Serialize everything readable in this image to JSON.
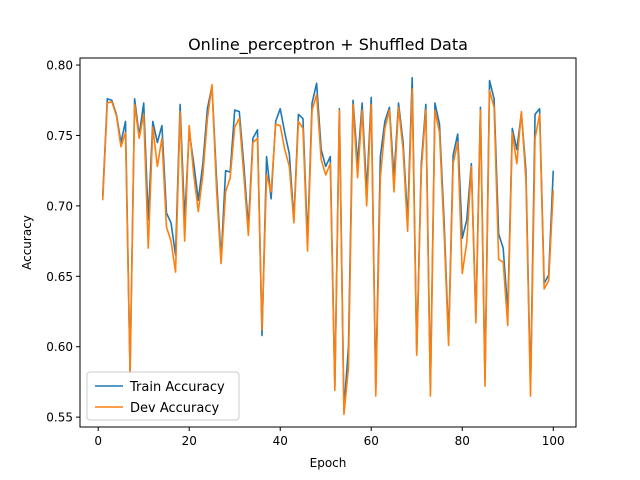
{
  "chart_data": {
    "type": "line",
    "title": "Online_perceptron + Shuffled Data",
    "xlabel": "Epoch",
    "ylabel": "Accuracy",
    "xlim": [
      -4,
      105
    ],
    "ylim": [
      0.543,
      0.805
    ],
    "xticks": [
      0,
      20,
      40,
      60,
      80,
      100
    ],
    "yticks": [
      0.55,
      0.6,
      0.65,
      0.7,
      0.75,
      0.8
    ],
    "ytick_labels": [
      "0.55",
      "0.60",
      "0.65",
      "0.70",
      "0.75",
      "0.80"
    ],
    "grid": false,
    "legend_position": "lower-left",
    "x": [
      1,
      2,
      3,
      4,
      5,
      6,
      7,
      8,
      9,
      10,
      11,
      12,
      13,
      14,
      15,
      16,
      17,
      18,
      19,
      20,
      21,
      22,
      23,
      24,
      25,
      26,
      27,
      28,
      29,
      30,
      31,
      32,
      33,
      34,
      35,
      36,
      37,
      38,
      39,
      40,
      41,
      42,
      43,
      44,
      45,
      46,
      47,
      48,
      49,
      50,
      51,
      52,
      53,
      54,
      55,
      56,
      57,
      58,
      59,
      60,
      61,
      62,
      63,
      64,
      65,
      66,
      67,
      68,
      69,
      70,
      71,
      72,
      73,
      74,
      75,
      76,
      77,
      78,
      79,
      80,
      81,
      82,
      83,
      84,
      85,
      86,
      87,
      88,
      89,
      90,
      91,
      92,
      93,
      94,
      95,
      96,
      97,
      98,
      99,
      100
    ],
    "series": [
      {
        "name": "Train Accuracy",
        "color": "#1f77b4",
        "values": [
          0.707,
          0.776,
          0.775,
          0.765,
          0.745,
          0.76,
          0.582,
          0.776,
          0.75,
          0.773,
          0.69,
          0.76,
          0.745,
          0.757,
          0.695,
          0.688,
          0.665,
          0.772,
          0.69,
          0.753,
          0.73,
          0.704,
          0.73,
          0.769,
          0.785,
          0.72,
          0.662,
          0.725,
          0.724,
          0.768,
          0.767,
          0.729,
          0.685,
          0.748,
          0.754,
          0.608,
          0.735,
          0.705,
          0.76,
          0.769,
          0.752,
          0.737,
          0.69,
          0.765,
          0.762,
          0.675,
          0.773,
          0.787,
          0.74,
          0.728,
          0.735,
          0.572,
          0.769,
          0.555,
          0.6,
          0.775,
          0.73,
          0.773,
          0.71,
          0.777,
          0.57,
          0.735,
          0.76,
          0.77,
          0.72,
          0.773,
          0.745,
          0.69,
          0.791,
          0.596,
          0.73,
          0.772,
          0.57,
          0.773,
          0.758,
          0.69,
          0.605,
          0.736,
          0.751,
          0.677,
          0.69,
          0.73,
          0.62,
          0.77,
          0.577,
          0.789,
          0.776,
          0.68,
          0.67,
          0.625,
          0.755,
          0.74,
          0.766,
          0.725,
          0.57,
          0.765,
          0.769,
          0.645,
          0.651,
          0.725
        ]
      },
      {
        "name": "Dev Accuracy",
        "color": "#ff7f0e",
        "values": [
          0.704,
          0.773,
          0.774,
          0.764,
          0.742,
          0.752,
          0.581,
          0.772,
          0.748,
          0.765,
          0.67,
          0.756,
          0.728,
          0.748,
          0.685,
          0.675,
          0.653,
          0.767,
          0.675,
          0.757,
          0.722,
          0.696,
          0.722,
          0.762,
          0.786,
          0.712,
          0.659,
          0.71,
          0.72,
          0.756,
          0.762,
          0.722,
          0.679,
          0.745,
          0.748,
          0.612,
          0.722,
          0.71,
          0.758,
          0.757,
          0.74,
          0.728,
          0.688,
          0.76,
          0.755,
          0.668,
          0.768,
          0.779,
          0.733,
          0.722,
          0.73,
          0.569,
          0.768,
          0.552,
          0.585,
          0.772,
          0.72,
          0.768,
          0.7,
          0.772,
          0.565,
          0.72,
          0.755,
          0.768,
          0.71,
          0.77,
          0.74,
          0.682,
          0.783,
          0.594,
          0.725,
          0.768,
          0.565,
          0.768,
          0.752,
          0.682,
          0.601,
          0.73,
          0.745,
          0.652,
          0.674,
          0.728,
          0.617,
          0.768,
          0.572,
          0.782,
          0.77,
          0.662,
          0.66,
          0.615,
          0.752,
          0.73,
          0.767,
          0.718,
          0.565,
          0.748,
          0.765,
          0.641,
          0.647,
          0.711
        ]
      }
    ]
  }
}
